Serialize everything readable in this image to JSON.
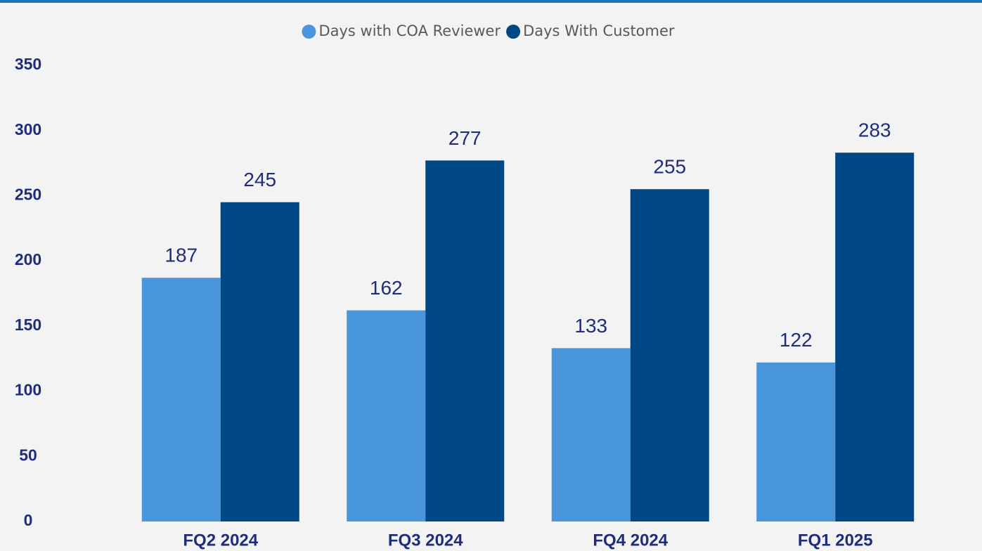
{
  "chart_data": {
    "type": "bar",
    "categories": [
      "FQ2 2024",
      "FQ3 2024",
      "FQ4 2024",
      "FQ1 2025"
    ],
    "series": [
      {
        "name": "Days with COA Reviewer",
        "color": "#4a96dc",
        "values": [
          187,
          162,
          133,
          122
        ]
      },
      {
        "name": "Days With Customer",
        "color": "#004785",
        "values": [
          245,
          277,
          255,
          283
        ]
      }
    ],
    "ylim": [
      0,
      350
    ],
    "yticks": [
      0,
      50,
      100,
      150,
      200,
      250,
      300,
      350
    ],
    "grid": false,
    "legend": "top"
  }
}
